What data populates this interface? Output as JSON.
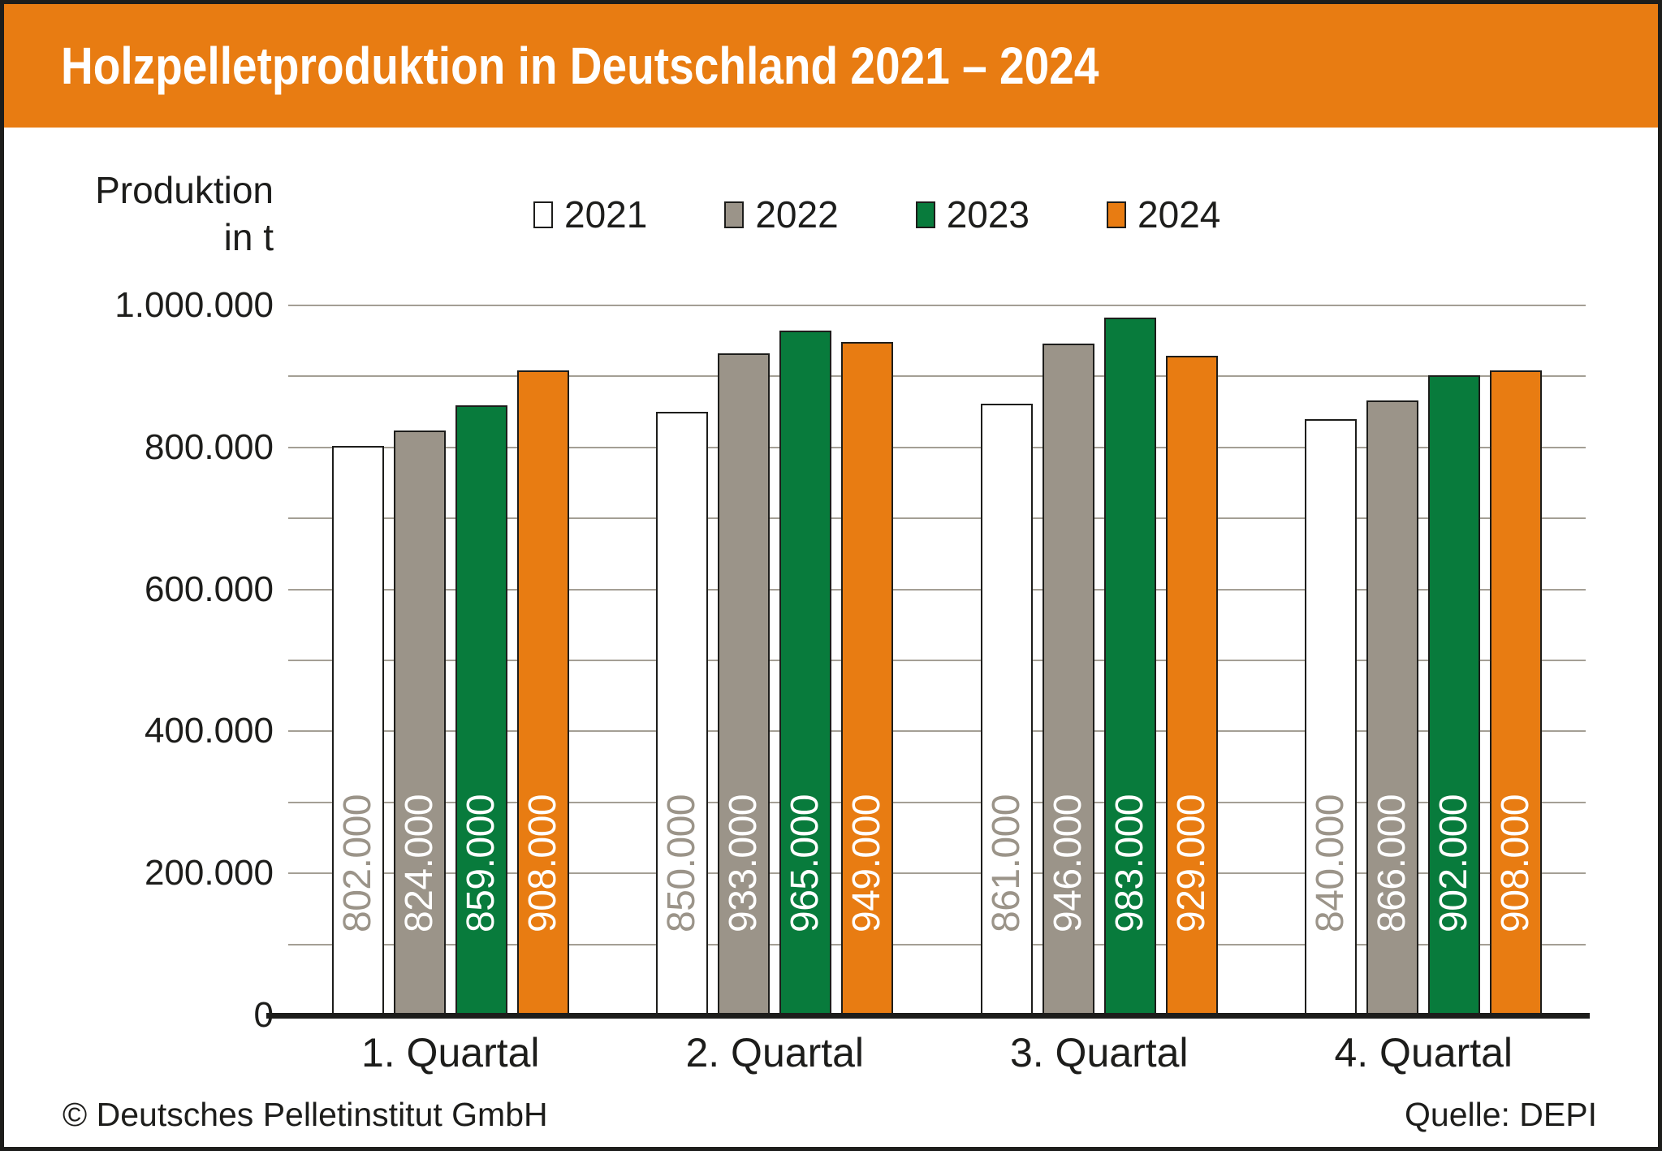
{
  "header": {
    "title": "Holzpelletproduktion in Deutschland 2021 – 2024",
    "background_color": "#E87C12",
    "title_color": "#FFFFFF"
  },
  "axis": {
    "title_line1": "Produktion",
    "title_line2": "in t",
    "yticks": [
      {
        "label": "0",
        "value": 0
      },
      {
        "label": "200.000",
        "value": 200000
      },
      {
        "label": "400.000",
        "value": 400000
      },
      {
        "label": "600.000",
        "value": 600000
      },
      {
        "label": "800.000",
        "value": 800000
      },
      {
        "label": "1.000.000",
        "value": 1000000
      }
    ],
    "grid_step": 100000
  },
  "legend": [
    {
      "label": "2021",
      "color": "#FFFFFF"
    },
    {
      "label": "2022",
      "color": "#9B9489"
    },
    {
      "label": "2023",
      "color": "#087B3C"
    },
    {
      "label": "2024",
      "color": "#E87C12"
    }
  ],
  "chart_data": {
    "type": "bar",
    "title": "Holzpelletproduktion in Deutschland 2021 – 2024",
    "ylabel": "Produktion in t",
    "ylim": [
      0,
      1000000
    ],
    "grid": true,
    "legend_position": "top-center",
    "categories": [
      "1. Quartal",
      "2. Quartal",
      "3. Quartal",
      "4. Quartal"
    ],
    "series": [
      {
        "name": "2021",
        "color": "#FFFFFF",
        "label_color": "#9B9489",
        "values": [
          802000,
          850000,
          861000,
          840000
        ],
        "labels": [
          "802.000",
          "850.000",
          "861.000",
          "840.000"
        ]
      },
      {
        "name": "2022",
        "color": "#9B9489",
        "label_color": "#FFFFFF",
        "values": [
          824000,
          933000,
          946000,
          866000
        ],
        "labels": [
          "824.000",
          "933.000",
          "946.000",
          "866.000"
        ]
      },
      {
        "name": "2023",
        "color": "#087B3C",
        "label_color": "#FFFFFF",
        "values": [
          859000,
          965000,
          983000,
          902000
        ],
        "labels": [
          "859.000",
          "965.000",
          "983.000",
          "902.000"
        ]
      },
      {
        "name": "2024",
        "color": "#E87C12",
        "label_color": "#FFFFFF",
        "values": [
          908000,
          949000,
          929000,
          908000
        ],
        "labels": [
          "908.000",
          "949.000",
          "929.000",
          "908.000"
        ]
      }
    ]
  },
  "footer": {
    "left": "© Deutsches Pelletinstitut GmbH",
    "right": "Quelle: DEPI"
  }
}
